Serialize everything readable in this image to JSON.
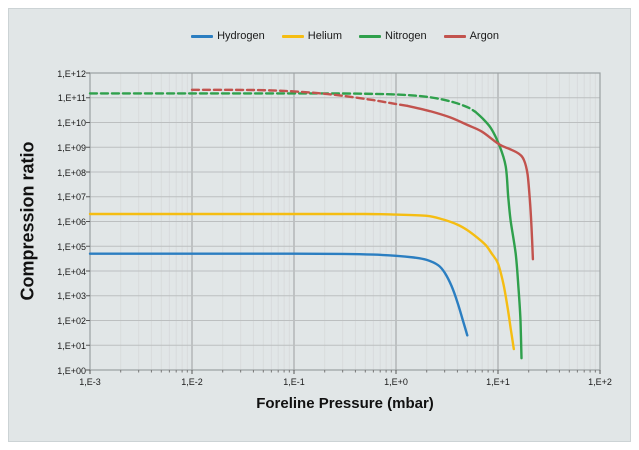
{
  "chart_data": {
    "type": "line",
    "x_scale": "log",
    "y_scale": "log",
    "xlim": [
      0.001,
      100
    ],
    "ylim": [
      1,
      1000000000000.0
    ],
    "xlabel": "Foreline Pressure (mbar)",
    "ylabel": "Compression ratio",
    "x_tick_labels": [
      "1,E-3",
      "1,E-2",
      "1,E-1",
      "1,E+0",
      "1,E+1",
      "1,E+2"
    ],
    "y_tick_labels": [
      "1,E+00",
      "1,E+01",
      "1,E+02",
      "1,E+03",
      "1,E+04",
      "1,E+05",
      "1,E+06",
      "1,E+07",
      "1,E+08",
      "1,E+09",
      "1,E+10",
      "1,E+11",
      "1,E+12"
    ],
    "grid": {
      "vertical_minor_log_subdivisions": true,
      "horizontal_major_only": true
    },
    "legend_position": "top-center",
    "series": [
      {
        "name": "Hydrogen",
        "color": "#2b7ec1",
        "segments": [
          {
            "style": "solid",
            "points": [
              [
                0.001,
                50000.0
              ],
              [
                0.01,
                50000.0
              ],
              [
                0.05,
                50000.0
              ],
              [
                0.1,
                50000.0
              ],
              [
                0.3,
                49000.0
              ],
              [
                0.6,
                46000.0
              ],
              [
                1,
                41000.0
              ],
              [
                1.5,
                35000.0
              ],
              [
                2,
                28000.0
              ],
              [
                2.6,
                17000.0
              ],
              [
                3,
                8500.0
              ],
              [
                3.5,
                2500.0
              ],
              [
                4,
                550
              ],
              [
                4.5,
                110
              ],
              [
                5,
                25
              ]
            ]
          }
        ]
      },
      {
        "name": "Helium",
        "color": "#f5bd12",
        "segments": [
          {
            "style": "solid",
            "points": [
              [
                0.001,
                2000000.0
              ],
              [
                0.01,
                2000000.0
              ],
              [
                0.1,
                2000000.0
              ],
              [
                0.5,
                2000000.0
              ],
              [
                1,
                1900000.0
              ],
              [
                2,
                1700000.0
              ],
              [
                2.9,
                1200000.0
              ],
              [
                4,
                750000.0
              ],
              [
                5,
                450000.0
              ],
              [
                6.3,
                220000.0
              ],
              [
                7.6,
                110000.0
              ],
              [
                8.7,
                50000.0
              ],
              [
                10,
                20000.0
              ],
              [
                11.3,
                3000.0
              ],
              [
                12.4,
                350
              ],
              [
                13.3,
                50
              ],
              [
                14.3,
                7
              ]
            ]
          }
        ]
      },
      {
        "name": "Nitrogen",
        "color": "#2fa04c",
        "segments": [
          {
            "style": "dashed",
            "points": [
              [
                0.001,
                150000000000.0
              ],
              [
                0.01,
                150000000000.0
              ],
              [
                0.1,
                150000000000.0
              ],
              [
                0.3,
                148000000000.0
              ],
              [
                0.6,
                143000000000.0
              ],
              [
                1,
                135000000000.0
              ],
              [
                1.6,
                120000000000.0
              ],
              [
                2.5,
                95000000000.0
              ],
              [
                3.7,
                65000000000.0
              ],
              [
                5,
                42000000000.0
              ],
              [
                6,
                27000000000.0
              ]
            ]
          },
          {
            "style": "solid",
            "points": [
              [
                6,
                27000000000.0
              ],
              [
                7,
                15000000000.0
              ],
              [
                8.5,
                6000000000.0
              ],
              [
                10.3,
                1200000000.0
              ],
              [
                11.9,
                170000000.0
              ],
              [
                12.6,
                10000000.0
              ],
              [
                13.3,
                1100000.0
              ],
              [
                14.9,
                50000.0
              ],
              [
                15.9,
                2000.0
              ],
              [
                16.6,
                100
              ],
              [
                17,
                3
              ]
            ]
          }
        ]
      },
      {
        "name": "Argon",
        "color": "#c2534e",
        "segments": [
          {
            "style": "dashed",
            "points": [
              [
                0.01,
                210000000000.0
              ],
              [
                0.04,
                205000000000.0
              ],
              [
                0.1,
                180000000000.0
              ],
              [
                0.2,
                145000000000.0
              ],
              [
                0.35,
                110000000000.0
              ],
              [
                0.6,
                80000000000.0
              ],
              [
                0.9,
                60000000000.0
              ],
              [
                1.3,
                47000000000.0
              ]
            ]
          },
          {
            "style": "solid",
            "points": [
              [
                1.3,
                47000000000.0
              ],
              [
                2.2,
                28000000000.0
              ],
              [
                3.4,
                16000000000.0
              ],
              [
                5,
                8000000000.0
              ],
              [
                7,
                4200000000.0
              ],
              [
                10.3,
                1300000000.0
              ],
              [
                13,
                850000000.0
              ],
              [
                16,
                550000000.0
              ],
              [
                18,
                300000000.0
              ],
              [
                19.5,
                80000000.0
              ],
              [
                20.5,
                8000000.0
              ],
              [
                21.3,
                600000.0
              ],
              [
                22,
                30000.0
              ]
            ]
          }
        ]
      }
    ]
  },
  "colors": {
    "panel_background": "#e1e6e7",
    "plot_background": "#ffffff",
    "grid_minor": "#d8dbdc",
    "grid_major_vertical": "#a8abac",
    "grid_major_horizontal": "#bcbfc0",
    "plot_border": "#9aa0a2",
    "text": "#1a1a1a"
  }
}
